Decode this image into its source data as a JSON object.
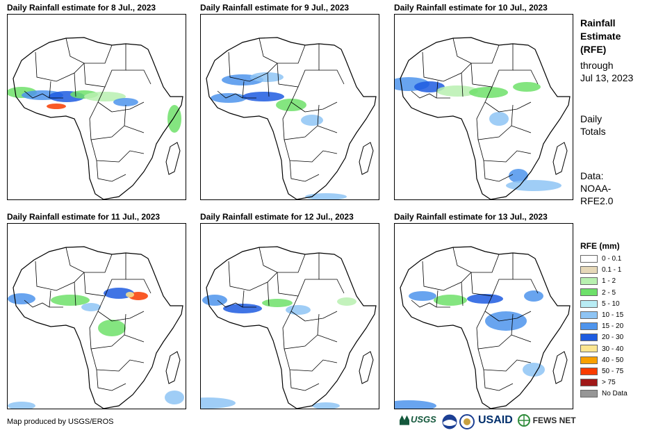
{
  "panels": [
    {
      "title": "Daily Rainfall estimate for 8 Jul., 2023"
    },
    {
      "title": "Daily Rainfall estimate for 9 Jul., 2023"
    },
    {
      "title": "Daily Rainfall estimate for 10 Jul., 2023"
    },
    {
      "title": "Daily Rainfall estimate for 11 Jul., 2023"
    },
    {
      "title": "Daily Rainfall estimate for 12 Jul., 2023"
    },
    {
      "title": "Daily Rainfall estimate for 13 Jul., 2023"
    }
  ],
  "side": {
    "title_line1": "Rainfall",
    "title_line2": "Estimate",
    "title_line3": "(RFE)",
    "through": "through",
    "date": "Jul 13, 2023",
    "totals_line1": "Daily",
    "totals_line2": "Totals",
    "data_line1": "Data:",
    "data_line2": "NOAA-",
    "data_line3": "RFE2.0"
  },
  "legend": {
    "title": "RFE (mm)",
    "items": [
      {
        "label": "0 - 0.1",
        "color": "#ffffff"
      },
      {
        "label": "0.1 - 1",
        "color": "#e6d8b8"
      },
      {
        "label": "1 - 2",
        "color": "#b8f0b0"
      },
      {
        "label": "2 - 5",
        "color": "#6ee06a"
      },
      {
        "label": "5 - 10",
        "color": "#b8ecf4"
      },
      {
        "label": "10 - 15",
        "color": "#8ec4f4"
      },
      {
        "label": "15 - 20",
        "color": "#4e94ec"
      },
      {
        "label": "20 - 30",
        "color": "#1e5ce0"
      },
      {
        "label": "30 - 40",
        "color": "#fce690"
      },
      {
        "label": "40 - 50",
        "color": "#f8a000"
      },
      {
        "label": "50 - 75",
        "color": "#f83c00"
      },
      {
        "label": "> 75",
        "color": "#a01818"
      },
      {
        "label": "No Data",
        "color": "#969696"
      }
    ]
  },
  "credit": "Map produced by USGS/EROS",
  "logos": {
    "usgs": "USGS",
    "noaa": "NOAA",
    "dept": "",
    "usaid": "USAID",
    "fews": "FEWS NET"
  }
}
